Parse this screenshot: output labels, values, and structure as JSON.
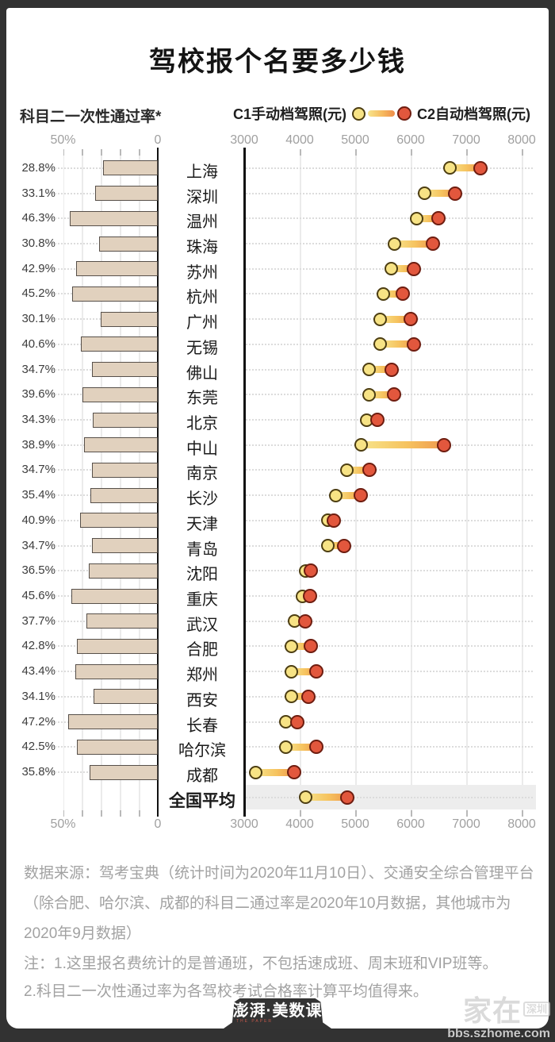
{
  "title": "驾校报个名要多少钱",
  "legend": {
    "left": "科目二一次性通过率*",
    "c1": "C1手动档驾照(元)",
    "c2": "C2自动档驾照(元)"
  },
  "axes": {
    "pass_rate_ticks": [
      "50%",
      "0"
    ],
    "price_ticks": [
      "3000",
      "4000",
      "5000",
      "6000",
      "7000",
      "8000"
    ]
  },
  "rows": [
    {
      "city": "上海",
      "pass_rate": "28.8%",
      "pass_rate_value": 28.8,
      "c1": 6700,
      "c2": 7250,
      "highlight": false
    },
    {
      "city": "深圳",
      "pass_rate": "33.1%",
      "pass_rate_value": 33.1,
      "c1": 6250,
      "c2": 6800,
      "highlight": false
    },
    {
      "city": "温州",
      "pass_rate": "46.3%",
      "pass_rate_value": 46.3,
      "c1": 6100,
      "c2": 6500,
      "highlight": false
    },
    {
      "city": "珠海",
      "pass_rate": "30.8%",
      "pass_rate_value": 30.8,
      "c1": 5700,
      "c2": 6400,
      "highlight": false
    },
    {
      "city": "苏州",
      "pass_rate": "42.9%",
      "pass_rate_value": 42.9,
      "c1": 5650,
      "c2": 6050,
      "highlight": false
    },
    {
      "city": "杭州",
      "pass_rate": "45.2%",
      "pass_rate_value": 45.2,
      "c1": 5500,
      "c2": 5850,
      "highlight": false
    },
    {
      "city": "广州",
      "pass_rate": "30.1%",
      "pass_rate_value": 30.1,
      "c1": 5450,
      "c2": 6000,
      "highlight": false
    },
    {
      "city": "无锡",
      "pass_rate": "40.6%",
      "pass_rate_value": 40.6,
      "c1": 5450,
      "c2": 6050,
      "highlight": false
    },
    {
      "city": "佛山",
      "pass_rate": "34.7%",
      "pass_rate_value": 34.7,
      "c1": 5250,
      "c2": 5650,
      "highlight": false
    },
    {
      "city": "东莞",
      "pass_rate": "39.6%",
      "pass_rate_value": 39.6,
      "c1": 5250,
      "c2": 5700,
      "highlight": false
    },
    {
      "city": "北京",
      "pass_rate": "34.3%",
      "pass_rate_value": 34.3,
      "c1": 5200,
      "c2": 5400,
      "highlight": false
    },
    {
      "city": "中山",
      "pass_rate": "38.9%",
      "pass_rate_value": 38.9,
      "c1": 5100,
      "c2": 6600,
      "highlight": false
    },
    {
      "city": "南京",
      "pass_rate": "34.7%",
      "pass_rate_value": 34.7,
      "c1": 4850,
      "c2": 5250,
      "highlight": false
    },
    {
      "city": "长沙",
      "pass_rate": "35.4%",
      "pass_rate_value": 35.4,
      "c1": 4650,
      "c2": 5100,
      "highlight": false
    },
    {
      "city": "天津",
      "pass_rate": "40.9%",
      "pass_rate_value": 40.9,
      "c1": 4500,
      "c2": 4620,
      "highlight": false
    },
    {
      "city": "青岛",
      "pass_rate": "34.7%",
      "pass_rate_value": 34.7,
      "c1": 4500,
      "c2": 4800,
      "highlight": false
    },
    {
      "city": "沈阳",
      "pass_rate": "36.5%",
      "pass_rate_value": 36.5,
      "c1": 4100,
      "c2": 4200,
      "highlight": false
    },
    {
      "city": "重庆",
      "pass_rate": "45.6%",
      "pass_rate_value": 45.6,
      "c1": 4050,
      "c2": 4180,
      "highlight": false
    },
    {
      "city": "武汉",
      "pass_rate": "37.7%",
      "pass_rate_value": 37.7,
      "c1": 3900,
      "c2": 4100,
      "highlight": false
    },
    {
      "city": "合肥",
      "pass_rate": "42.8%",
      "pass_rate_value": 42.8,
      "c1": 3850,
      "c2": 4200,
      "highlight": false
    },
    {
      "city": "郑州",
      "pass_rate": "43.4%",
      "pass_rate_value": 43.4,
      "c1": 3850,
      "c2": 4300,
      "highlight": false
    },
    {
      "city": "西安",
      "pass_rate": "34.1%",
      "pass_rate_value": 34.1,
      "c1": 3850,
      "c2": 4150,
      "highlight": false
    },
    {
      "city": "长春",
      "pass_rate": "47.2%",
      "pass_rate_value": 47.2,
      "c1": 3750,
      "c2": 3950,
      "highlight": false
    },
    {
      "city": "哈尔滨",
      "pass_rate": "42.5%",
      "pass_rate_value": 42.5,
      "c1": 3750,
      "c2": 4300,
      "highlight": false
    },
    {
      "city": "成都",
      "pass_rate": "35.8%",
      "pass_rate_value": 35.8,
      "c1": 3200,
      "c2": 3900,
      "highlight": false
    },
    {
      "city": "全国平均",
      "pass_rate": null,
      "pass_rate_value": null,
      "c1": 4100,
      "c2": 4850,
      "highlight": true
    }
  ],
  "footer": {
    "source": "数据来源：驾考宝典（统计时间为2020年11月10日）、交通安全综合管理平台（除合肥、哈尔滨、成都的科目二通过率是2020年10月数据，其他城市为2020年9月数据）",
    "note1": "注：1.这里报名费统计的是普通班，不包括速成班、周末班和VIP班等。",
    "note2": "2.科目二一次性通过率为各驾校考试合格率计算平均值得来。"
  },
  "logo": {
    "text": "澎湃·美数课",
    "subtext": "THE PAPER"
  },
  "watermark": {
    "main": "家在",
    "badge": "深圳",
    "url": "bbs.szhome.com"
  },
  "colors": {
    "frame": "#323232",
    "card": "#ffffff",
    "bar_fill": "#e1d1be",
    "bar_border": "#57504a",
    "c1_dot": "#f7e385",
    "c2_dot": "#e2573d",
    "highlight_band": "#ededed"
  },
  "chart_data": [
    {
      "type": "bar",
      "title": "科目二一次性通过率*",
      "orientation": "horizontal_leftward",
      "categories": [
        "上海",
        "深圳",
        "温州",
        "珠海",
        "苏州",
        "杭州",
        "广州",
        "无锡",
        "佛山",
        "东莞",
        "北京",
        "中山",
        "南京",
        "长沙",
        "天津",
        "青岛",
        "沈阳",
        "重庆",
        "武汉",
        "合肥",
        "郑州",
        "西安",
        "长春",
        "哈尔滨",
        "成都",
        "全国平均"
      ],
      "values": [
        28.8,
        33.1,
        46.3,
        30.8,
        42.9,
        45.2,
        30.1,
        40.6,
        34.7,
        39.6,
        34.3,
        38.9,
        34.7,
        35.4,
        40.9,
        34.7,
        36.5,
        45.6,
        37.7,
        42.8,
        43.4,
        34.1,
        47.2,
        42.5,
        35.8,
        null
      ],
      "unit": "%",
      "xlim": [
        0,
        50
      ],
      "tick_labels": [
        "50%",
        "0"
      ],
      "grid": true
    },
    {
      "type": "dumbbell",
      "title": "驾校报名费（元）",
      "categories": [
        "上海",
        "深圳",
        "温州",
        "珠海",
        "苏州",
        "杭州",
        "广州",
        "无锡",
        "佛山",
        "东莞",
        "北京",
        "中山",
        "南京",
        "长沙",
        "天津",
        "青岛",
        "沈阳",
        "重庆",
        "武汉",
        "合肥",
        "郑州",
        "西安",
        "长春",
        "哈尔滨",
        "成都",
        "全国平均"
      ],
      "series": [
        {
          "name": "C1手动档驾照(元)",
          "values": [
            6700,
            6250,
            6100,
            5700,
            5650,
            5500,
            5450,
            5450,
            5250,
            5250,
            5200,
            5100,
            4850,
            4650,
            4500,
            4500,
            4100,
            4050,
            3900,
            3850,
            3850,
            3850,
            3750,
            3750,
            3200,
            4100
          ]
        },
        {
          "name": "C2自动档驾照(元)",
          "values": [
            7250,
            6800,
            6500,
            6400,
            6050,
            5850,
            6000,
            6050,
            5650,
            5700,
            5400,
            6600,
            5250,
            5100,
            4620,
            4800,
            4200,
            4180,
            4100,
            4200,
            4300,
            4150,
            3950,
            4300,
            3900,
            4850
          ]
        }
      ],
      "xlim": [
        3000,
        8000
      ],
      "tick_labels": [
        "3000",
        "4000",
        "5000",
        "6000",
        "7000",
        "8000"
      ],
      "grid": true,
      "legend_position": "top",
      "highlighted_category": "全国平均"
    }
  ]
}
